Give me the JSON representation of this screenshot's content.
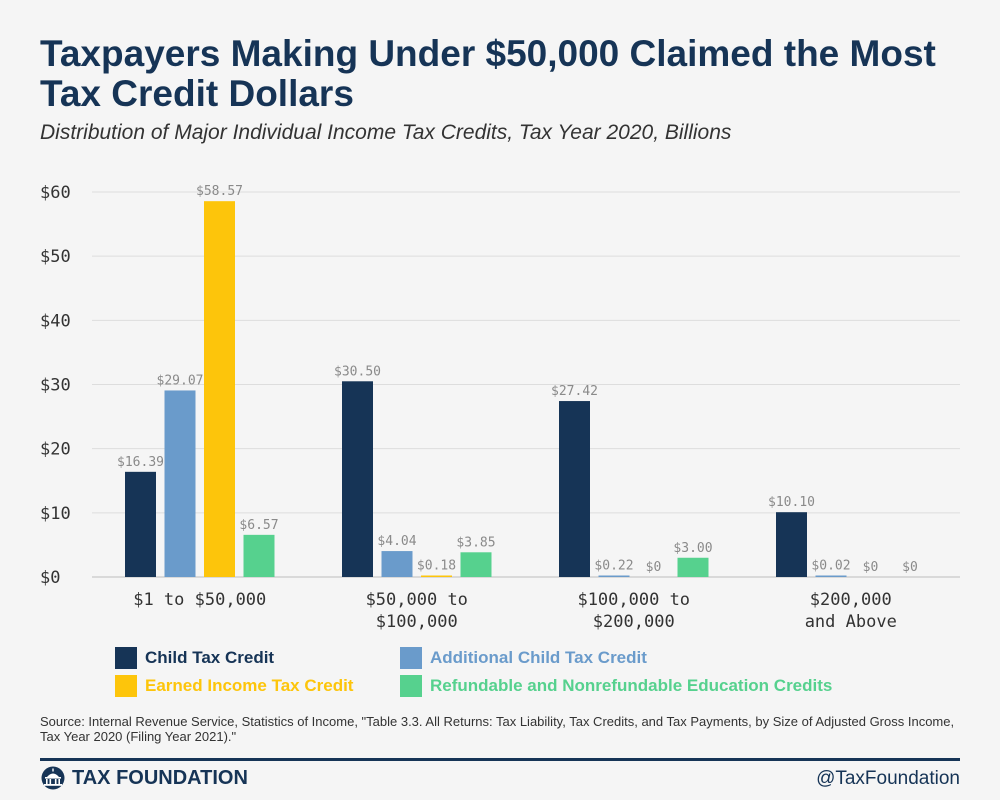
{
  "title": "Taxpayers Making Under $50,000 Claimed the Most Tax Credit Dollars",
  "subtitle": "Distribution of Major Individual Income Tax Credits, Tax Year 2020, Billions",
  "chart_data": {
    "type": "bar",
    "title": "Taxpayers Making Under $50,000 Claimed the Most Tax Credit Dollars",
    "subtitle": "Distribution of Major Individual Income Tax Credits, Tax Year 2020, Billions",
    "categories": [
      [
        "$1 to $50,000"
      ],
      [
        "$50,000 to",
        "$100,000"
      ],
      [
        "$100,000 to",
        "$200,000"
      ],
      [
        "$200,000",
        "and Above"
      ]
    ],
    "series": [
      {
        "name": "Child Tax Credit",
        "color": "#163456",
        "values": [
          16.39,
          30.5,
          27.42,
          10.1
        ],
        "labels": [
          "$16.39",
          "$30.50",
          "$27.42",
          "$10.10"
        ]
      },
      {
        "name": "Additional Child Tax Credit",
        "color": "#6a9bcb",
        "values": [
          29.07,
          4.04,
          0.22,
          0.02
        ],
        "labels": [
          "$29.07",
          "$4.04",
          "$0.22",
          "$0.02"
        ]
      },
      {
        "name": "Earned Income Tax Credit",
        "color": "#fdc50b",
        "values": [
          58.57,
          0.18,
          0,
          0
        ],
        "labels": [
          "$58.57",
          "$0.18",
          "$0",
          "$0"
        ]
      },
      {
        "name": "Refundable and Nonrefundable Education Credits",
        "color": "#56d18e",
        "values": [
          6.57,
          3.85,
          3.0,
          0
        ],
        "labels": [
          "$6.57",
          "$3.85",
          "$3.00",
          "$0"
        ]
      }
    ],
    "yticks": [
      0,
      10,
      20,
      30,
      40,
      50,
      60
    ],
    "ytick_labels": [
      "$0",
      "$10",
      "$20",
      "$30",
      "$40",
      "$50",
      "$60"
    ],
    "ylim": [
      0,
      60
    ],
    "grid": true,
    "legend_position": "bottom"
  },
  "legend": [
    {
      "label": "Child Tax Credit",
      "color": "#163456",
      "text_color": "#163456"
    },
    {
      "label": "Additional Child Tax Credit",
      "color": "#6a9bcb",
      "text_color": "#6a9bcb"
    },
    {
      "label": "Earned Income Tax Credit",
      "color": "#fdc50b",
      "text_color": "#fdc50b"
    },
    {
      "label": "Refundable and Nonrefundable Education Credits",
      "color": "#56d18e",
      "text_color": "#56d18e"
    }
  ],
  "source": "Source: Internal Revenue Service, Statistics of Income, \"Table 3.3.  All Returns: Tax Liability, Tax Credits, and Tax Payments, by Size of Adjusted Gross Income, Tax Year 2020 (Filing Year 2021).\"",
  "footer": {
    "brand": "TAX FOUNDATION",
    "brand_icon": "capitol-icon",
    "handle": "@TaxFoundation"
  }
}
